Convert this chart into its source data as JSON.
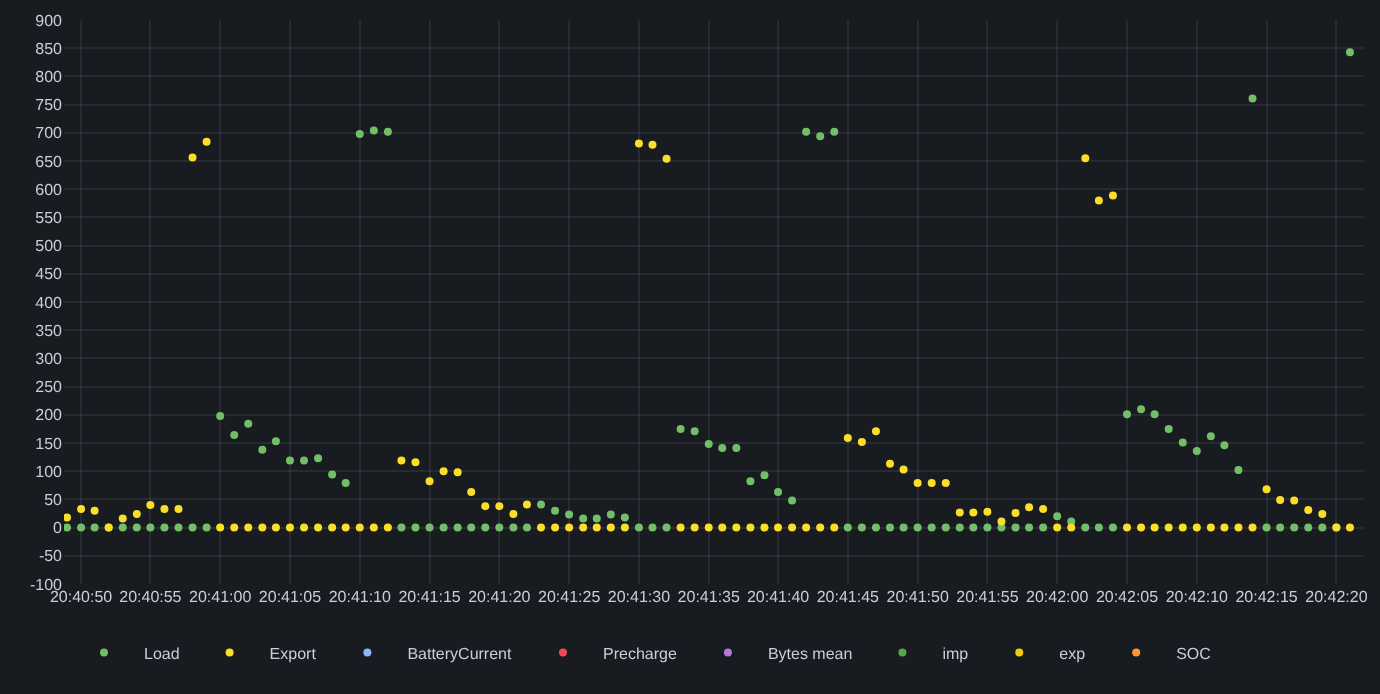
{
  "chart_data": {
    "type": "scatter",
    "marker": "circle",
    "grid": true,
    "legend": "bottom",
    "x": [
      20.68028,
      20.68056,
      20.68083,
      20.68111,
      20.68139,
      20.68167,
      20.68194,
      20.68222,
      20.6825,
      20.68278,
      20.68306,
      20.68333,
      20.68361,
      20.68389,
      20.68417,
      20.68444,
      20.68472,
      20.685,
      20.68528,
      20.68556,
      20.68583,
      20.68611,
      20.68639,
      20.68667,
      20.68694,
      20.68722,
      20.6875,
      20.68778,
      20.68806,
      20.68833,
      20.68861,
      20.68889,
      20.68917,
      20.68944,
      20.68972,
      20.69,
      20.69028,
      20.69056,
      20.69083,
      20.69111,
      20.69139,
      20.69167,
      20.69194,
      20.69222,
      20.6925,
      20.69278,
      20.69306,
      20.69333,
      20.69361,
      20.69389,
      20.69417,
      20.69444,
      20.69472,
      20.695,
      20.69528,
      20.69556,
      20.69583,
      20.69611,
      20.69639,
      20.69667,
      20.69694,
      20.69722,
      20.6975,
      20.69778,
      20.69806,
      20.69833,
      20.69861,
      20.69889,
      20.69917,
      20.69944,
      20.69972,
      20.7,
      20.70028,
      20.70056,
      20.70083,
      20.70111,
      20.70139,
      20.70167,
      20.70194,
      20.70222,
      20.7025,
      20.70278,
      20.70306,
      20.70333,
      20.70361,
      20.70389,
      20.70417,
      20.70444,
      20.70472,
      20.705,
      20.70528,
      20.70556,
      20.70583
    ],
    "xlim": [
      20.68022,
      20.70611
    ],
    "xticks": [
      {
        "value": 20.68056,
        "label": "20:40:50"
      },
      {
        "value": 20.68194,
        "label": "20:40:55"
      },
      {
        "value": 20.68333,
        "label": "20:41:00"
      },
      {
        "value": 20.68472,
        "label": "20:41:05"
      },
      {
        "value": 20.68611,
        "label": "20:41:10"
      },
      {
        "value": 20.6875,
        "label": "20:41:15"
      },
      {
        "value": 20.68889,
        "label": "20:41:20"
      },
      {
        "value": 20.69028,
        "label": "20:41:25"
      },
      {
        "value": 20.69167,
        "label": "20:41:30"
      },
      {
        "value": 20.69306,
        "label": "20:41:35"
      },
      {
        "value": 20.69444,
        "label": "20:41:40"
      },
      {
        "value": 20.69583,
        "label": "20:41:45"
      },
      {
        "value": 20.69722,
        "label": "20:41:50"
      },
      {
        "value": 20.69861,
        "label": "20:41:55"
      },
      {
        "value": 20.7,
        "label": "20:42:00"
      },
      {
        "value": 20.70139,
        "label": "20:42:05"
      },
      {
        "value": 20.70278,
        "label": "20:42:10"
      },
      {
        "value": 20.70417,
        "label": "20:42:15"
      },
      {
        "value": 20.70556,
        "label": "20:42:20"
      }
    ],
    "ylim": [
      -100,
      900
    ],
    "yticks": [
      -100,
      -50,
      0,
      50,
      100,
      150,
      200,
      250,
      300,
      350,
      400,
      450,
      500,
      550,
      600,
      650,
      700,
      750,
      800,
      850,
      900
    ],
    "series": [
      {
        "name": "Load",
        "color": "#73bf69",
        "values": [
          0,
          0,
          0,
          0,
          0,
          0,
          0,
          0,
          0,
          0,
          0,
          198,
          164,
          184,
          138,
          153,
          119,
          119,
          123,
          94,
          79,
          698,
          704,
          702,
          0,
          0,
          0,
          0,
          0,
          0,
          0,
          0,
          0,
          0,
          41,
          30,
          23,
          16,
          16,
          23,
          18,
          0,
          0,
          0,
          175,
          171,
          148,
          141,
          141,
          82,
          93,
          63,
          48,
          702,
          694,
          702,
          0,
          0,
          0,
          0,
          0,
          0,
          0,
          0,
          0,
          0,
          0,
          0,
          0,
          0,
          0,
          20,
          11,
          0,
          0,
          0,
          201,
          210,
          201,
          175,
          151,
          136,
          162,
          146,
          102,
          761,
          0,
          0,
          0,
          0,
          0,
          0,
          843
        ]
      },
      {
        "name": "Export",
        "color": "#fade2a",
        "values": [
          18,
          33,
          30,
          0,
          16,
          24,
          40,
          33,
          33,
          656,
          684,
          0,
          0,
          0,
          0,
          0,
          0,
          0,
          0,
          0,
          0,
          0,
          0,
          0,
          119,
          116,
          82,
          100,
          98,
          63,
          38,
          38,
          24,
          41,
          0,
          0,
          0,
          0,
          0,
          0,
          0,
          681,
          679,
          654,
          0,
          0,
          0,
          0,
          0,
          0,
          0,
          0,
          0,
          0,
          0,
          0,
          159,
          152,
          171,
          113,
          103,
          79,
          79,
          79,
          27,
          27,
          28,
          11,
          26,
          36,
          33,
          0,
          0,
          655,
          580,
          589,
          0,
          0,
          0,
          0,
          0,
          0,
          0,
          0,
          0,
          0,
          68,
          49,
          48,
          31,
          24,
          0,
          0
        ]
      },
      {
        "name": "BatteryCurrent",
        "color": "#8ab8ff",
        "values": [
          null,
          null,
          null,
          null,
          null,
          null,
          null,
          null,
          null,
          null,
          null,
          null,
          null,
          null,
          null,
          null,
          null,
          null,
          null,
          null,
          null,
          null,
          null,
          null,
          null,
          null,
          null,
          null,
          null,
          null,
          null,
          null,
          null,
          null,
          null,
          null,
          null,
          null,
          null,
          null,
          null,
          null,
          null,
          null,
          null,
          null,
          null,
          null,
          null,
          null,
          null,
          null,
          null,
          null,
          null,
          null,
          null,
          null,
          null,
          null,
          null,
          null,
          null,
          null,
          null,
          null,
          null,
          null,
          null,
          null,
          null,
          null,
          null,
          null,
          null,
          null,
          null,
          null,
          null,
          null,
          null,
          null,
          null,
          null,
          null,
          null,
          null,
          null,
          null,
          null,
          null,
          null,
          null
        ]
      },
      {
        "name": "Precharge",
        "color": "#f2495c",
        "values": [
          null,
          null,
          null,
          null,
          null,
          null,
          null,
          null,
          null,
          null,
          null,
          null,
          null,
          null,
          null,
          null,
          null,
          null,
          null,
          null,
          null,
          null,
          null,
          null,
          null,
          null,
          null,
          null,
          null,
          null,
          null,
          null,
          null,
          null,
          null,
          null,
          null,
          null,
          null,
          null,
          null,
          null,
          null,
          null,
          null,
          null,
          null,
          null,
          null,
          null,
          null,
          null,
          null,
          null,
          null,
          null,
          null,
          null,
          null,
          null,
          null,
          null,
          null,
          null,
          null,
          null,
          null,
          null,
          null,
          null,
          null,
          null,
          null,
          null,
          null,
          null,
          null,
          null,
          null,
          null,
          null,
          null,
          null,
          null,
          null,
          null,
          null,
          null,
          null,
          null,
          null,
          null,
          null
        ]
      },
      {
        "name": "Bytes mean",
        "color": "#b877d9",
        "values": [
          null,
          null,
          null,
          null,
          null,
          null,
          null,
          null,
          null,
          null,
          null,
          null,
          null,
          null,
          null,
          null,
          null,
          null,
          null,
          null,
          null,
          null,
          null,
          null,
          null,
          null,
          null,
          null,
          null,
          null,
          null,
          null,
          null,
          null,
          null,
          null,
          null,
          null,
          null,
          null,
          null,
          null,
          null,
          null,
          null,
          null,
          null,
          null,
          null,
          null,
          null,
          null,
          null,
          null,
          null,
          null,
          null,
          null,
          null,
          null,
          null,
          null,
          null,
          null,
          null,
          null,
          null,
          null,
          null,
          null,
          null,
          null,
          null,
          null,
          null,
          null,
          null,
          null,
          null,
          null,
          null,
          null,
          null,
          null,
          null,
          null,
          null,
          null,
          null,
          null,
          null,
          null,
          null
        ]
      },
      {
        "name": "imp",
        "color": "#56a64b",
        "values": [
          null,
          null,
          null,
          null,
          null,
          null,
          null,
          null,
          null,
          null,
          null,
          null,
          null,
          null,
          null,
          null,
          null,
          null,
          null,
          null,
          null,
          null,
          null,
          null,
          null,
          null,
          null,
          null,
          null,
          null,
          null,
          null,
          null,
          null,
          null,
          null,
          null,
          null,
          null,
          null,
          null,
          null,
          null,
          null,
          null,
          null,
          null,
          null,
          null,
          null,
          null,
          null,
          null,
          null,
          null,
          null,
          null,
          null,
          null,
          null,
          null,
          null,
          null,
          null,
          null,
          null,
          null,
          null,
          null,
          null,
          null,
          null,
          null,
          null,
          null,
          null,
          null,
          null,
          null,
          null,
          null,
          null,
          null,
          null,
          null,
          null,
          null,
          null,
          null,
          null,
          null,
          null,
          null
        ]
      },
      {
        "name": "exp",
        "color": "#f2cc0c",
        "values": [
          null,
          null,
          null,
          null,
          null,
          null,
          null,
          null,
          null,
          null,
          null,
          null,
          null,
          null,
          null,
          null,
          null,
          null,
          null,
          null,
          null,
          null,
          null,
          null,
          null,
          null,
          null,
          null,
          null,
          null,
          null,
          null,
          null,
          null,
          null,
          null,
          null,
          null,
          null,
          null,
          null,
          null,
          null,
          null,
          null,
          null,
          null,
          null,
          null,
          null,
          null,
          null,
          null,
          null,
          null,
          null,
          null,
          null,
          null,
          null,
          null,
          null,
          null,
          null,
          null,
          null,
          null,
          null,
          null,
          null,
          null,
          null,
          null,
          null,
          null,
          null,
          null,
          null,
          null,
          null,
          null,
          null,
          null,
          null,
          null,
          null,
          null,
          null,
          null,
          null,
          null,
          null,
          null
        ]
      },
      {
        "name": "SOC",
        "color": "#ff9830",
        "values": [
          null,
          null,
          null,
          null,
          null,
          null,
          null,
          null,
          null,
          null,
          null,
          null,
          null,
          null,
          null,
          null,
          null,
          null,
          null,
          null,
          null,
          null,
          null,
          null,
          null,
          null,
          null,
          null,
          null,
          null,
          null,
          null,
          null,
          null,
          null,
          null,
          null,
          null,
          null,
          null,
          null,
          null,
          null,
          null,
          null,
          null,
          null,
          null,
          null,
          null,
          null,
          null,
          null,
          null,
          null,
          null,
          null,
          null,
          null,
          null,
          null,
          null,
          null,
          null,
          null,
          null,
          null,
          null,
          null,
          null,
          null,
          null,
          null,
          null,
          null,
          null,
          null,
          null,
          null,
          null,
          null,
          null,
          null,
          null,
          null,
          null,
          null,
          null,
          null,
          null,
          null,
          null,
          null
        ]
      }
    ]
  }
}
